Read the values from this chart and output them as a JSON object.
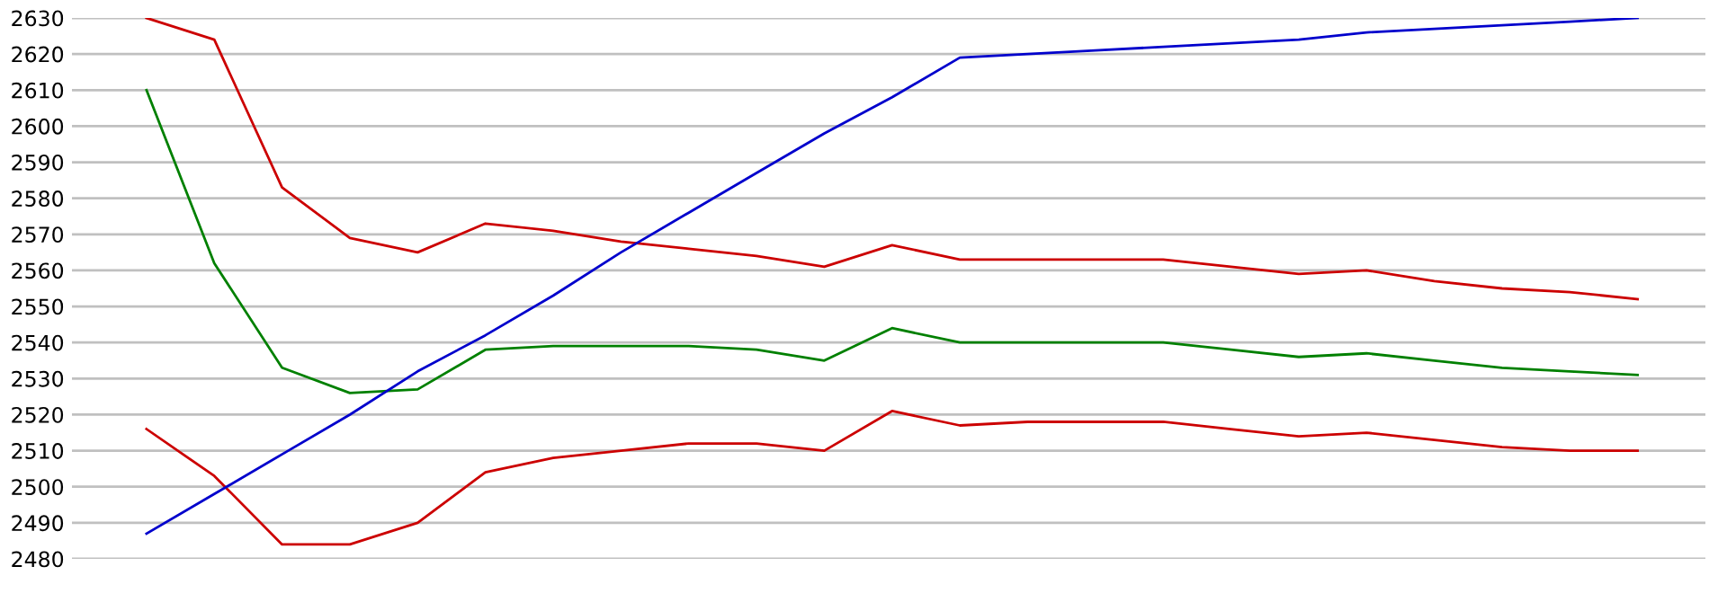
{
  "chart_data": {
    "type": "line",
    "categories": [
      null,
      null,
      null,
      null,
      null,
      null,
      null,
      null,
      null,
      null,
      null,
      null,
      null,
      null,
      null,
      null,
      null,
      null,
      null,
      null,
      null,
      null,
      null
    ],
    "series": [
      {
        "color": "#cc0000",
        "values": [
          2630,
          2624,
          2583,
          2569,
          2565,
          2573,
          2571,
          2568,
          2566,
          2564,
          2561,
          2567,
          2563,
          2563,
          2563,
          2563,
          2561,
          2559,
          2560,
          2557,
          2555,
          2554,
          2552
        ]
      },
      {
        "color": "#008000",
        "values": [
          2610,
          2562,
          2533,
          2526,
          2527,
          2538,
          2539,
          2539,
          2539,
          2538,
          2535,
          2544,
          2540,
          2540,
          2540,
          2540,
          2538,
          2536,
          2537,
          2535,
          2533,
          2532,
          2531
        ]
      },
      {
        "color": "#cc0000",
        "values": [
          2516,
          2503,
          2484,
          2484,
          2490,
          2504,
          2508,
          2510,
          2512,
          2512,
          2510,
          2521,
          2517,
          2518,
          2518,
          2518,
          2516,
          2514,
          2515,
          2513,
          2511,
          2510,
          2510
        ]
      },
      {
        "color": "#0000cc",
        "values": [
          2487,
          2498,
          2509,
          2520,
          2532,
          2542,
          2553,
          2565,
          2576,
          2587,
          2598,
          2608,
          2619,
          2620,
          2621,
          2622,
          2623,
          2624,
          2626,
          2627,
          2628,
          2629,
          2630
        ]
      }
    ],
    "ylim": [
      2480,
      2630
    ],
    "yticks": [
      2480,
      2490,
      2500,
      2510,
      2520,
      2530,
      2540,
      2550,
      2560,
      2570,
      2580,
      2590,
      2600,
      2610,
      2620,
      2630
    ],
    "grid": "y",
    "tick_labels": "y",
    "marker": "none",
    "line_style": "solid"
  }
}
